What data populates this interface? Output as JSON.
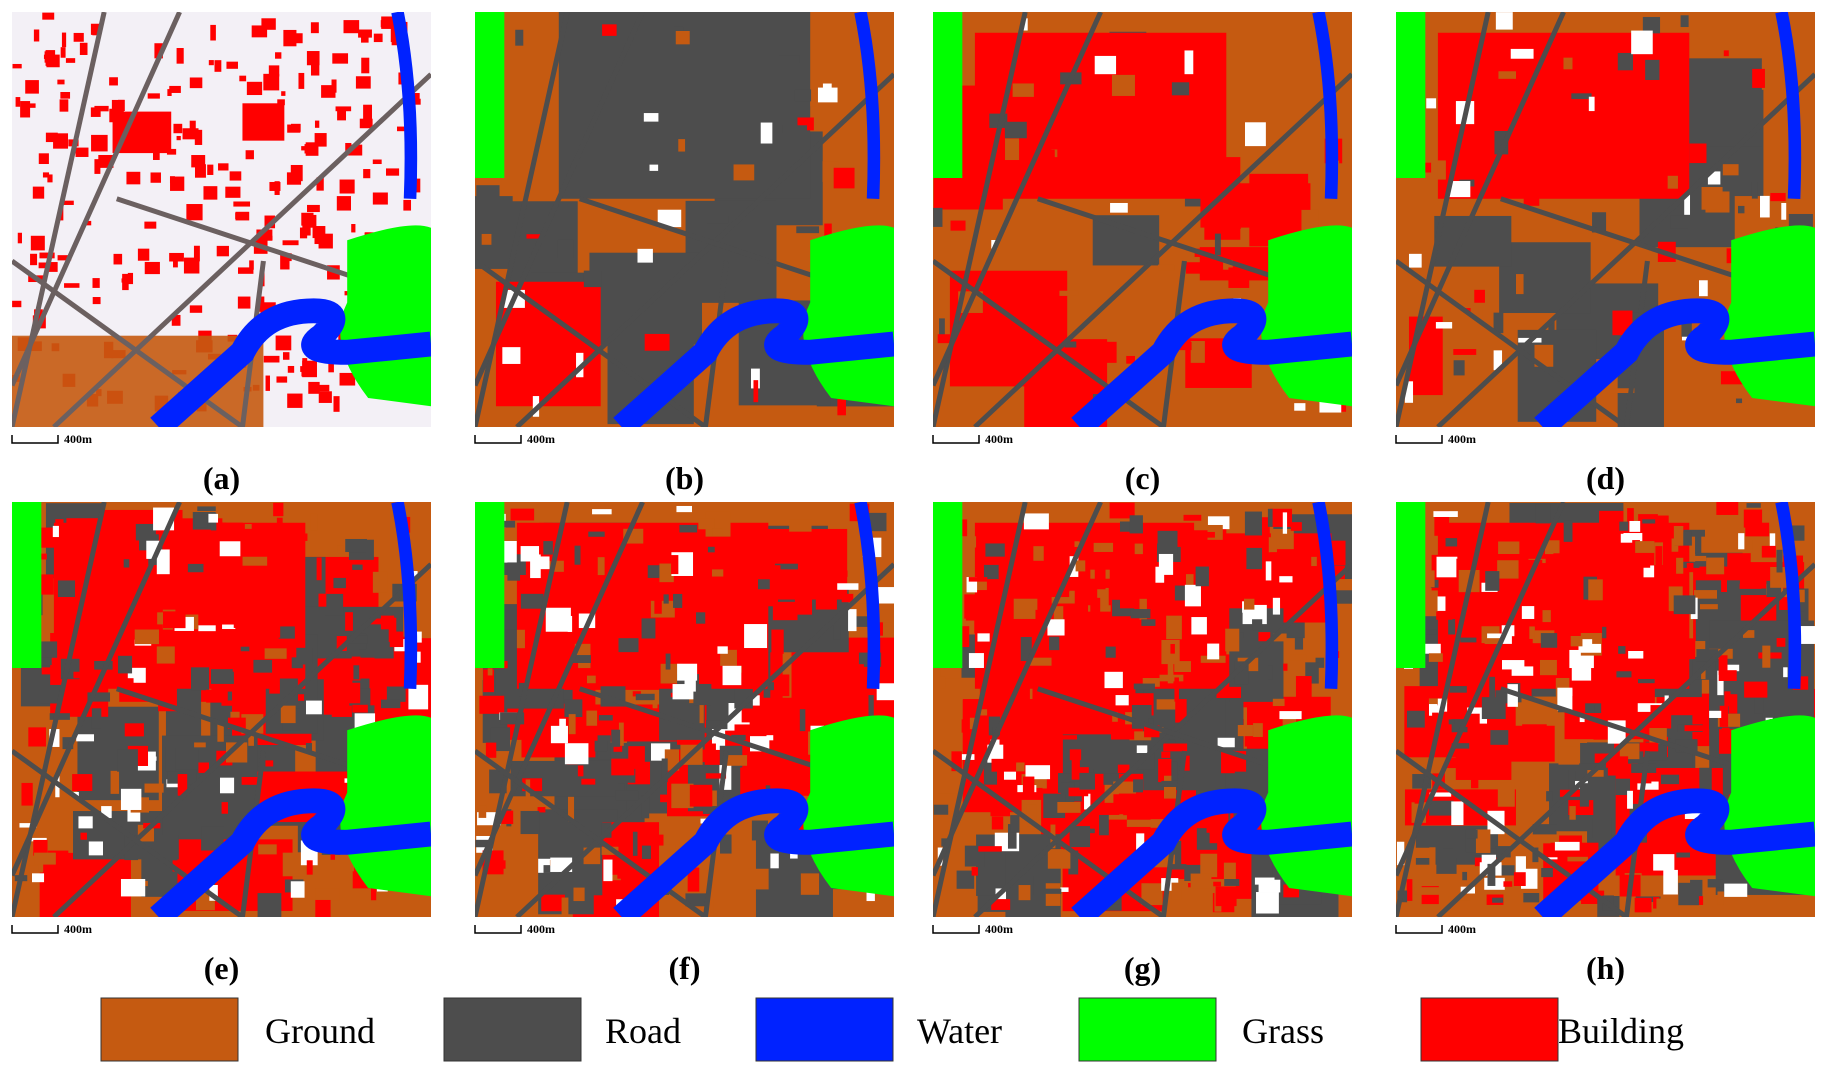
{
  "panels": [
    {
      "label": "(a)",
      "scale": "400m"
    },
    {
      "label": "(b)",
      "scale": "400m"
    },
    {
      "label": "(c)",
      "scale": "400m"
    },
    {
      "label": "(d)",
      "scale": "400m"
    },
    {
      "label": "(e)",
      "scale": "400m"
    },
    {
      "label": "(f)",
      "scale": "400m"
    },
    {
      "label": "(g)",
      "scale": "400m"
    },
    {
      "label": "(h)",
      "scale": "400m"
    }
  ],
  "legend": [
    {
      "name": "Ground",
      "color": "#c55a11"
    },
    {
      "name": "Road",
      "color": "#4d4d4d"
    },
    {
      "name": "Water",
      "color": "#0022ff"
    },
    {
      "name": "Grass",
      "color": "#00ff00"
    },
    {
      "name": "Building",
      "color": "#ff0000"
    }
  ]
}
